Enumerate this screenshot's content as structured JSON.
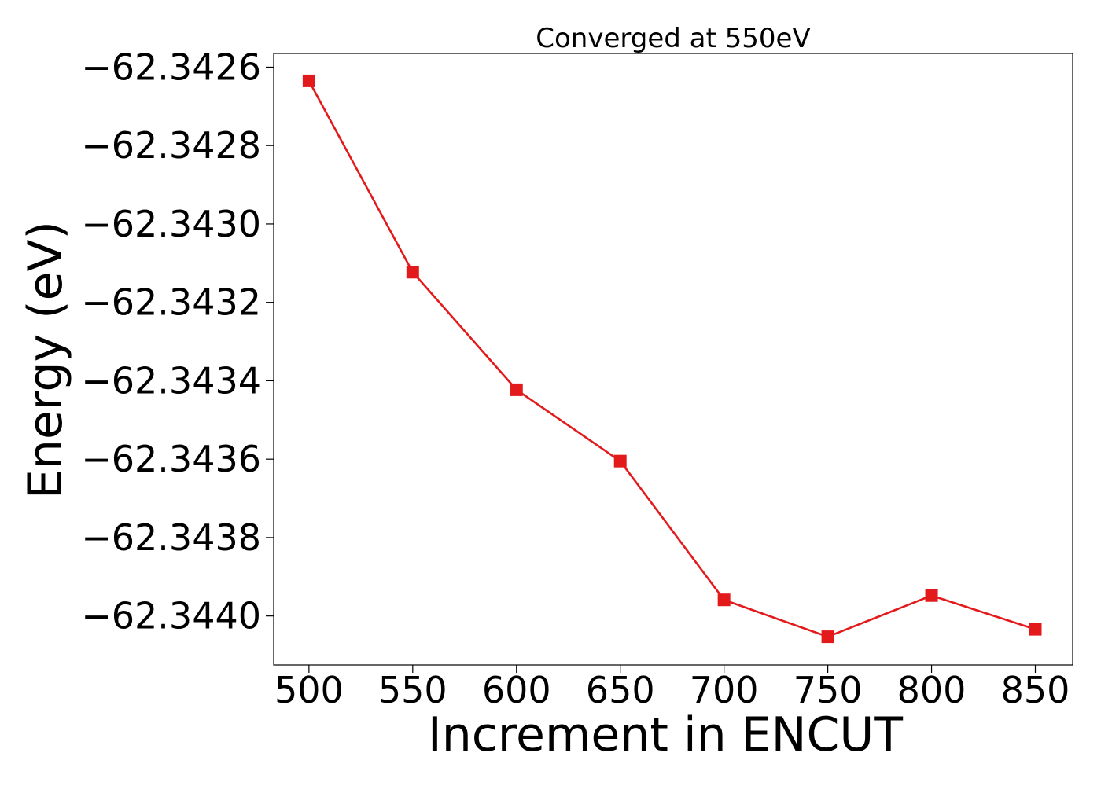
{
  "chart_data": {
    "type": "line",
    "title": "Converged at 550eV",
    "xlabel": "Increment in ENCUT",
    "ylabel": "Energy (eV)",
    "x": [
      500,
      550,
      600,
      650,
      700,
      750,
      800,
      850
    ],
    "series": [
      {
        "values": [
          -62.342635,
          -62.343123,
          -62.343423,
          -62.343605,
          -62.343959,
          -62.344053,
          -62.343948,
          -62.344034
        ],
        "color": "#e31a1c",
        "marker": "square"
      }
    ],
    "xlim": [
      483,
      868
    ],
    "ylim": [
      -62.344125,
      -62.342565
    ],
    "xticks": [
      500,
      550,
      600,
      650,
      700,
      750,
      800,
      850
    ],
    "xtick_labels": [
      "500",
      "550",
      "600",
      "650",
      "700",
      "750",
      "800",
      "850"
    ],
    "yticks": [
      -62.3426,
      -62.3428,
      -62.343,
      -62.3432,
      -62.3434,
      -62.3436,
      -62.3438,
      -62.344
    ],
    "ytick_labels": [
      "−62.3426",
      "−62.3428",
      "−62.3430",
      "−62.3432",
      "−62.3434",
      "−62.3436",
      "−62.3438",
      "−62.3440"
    ],
    "grid": false,
    "legend": "none"
  }
}
